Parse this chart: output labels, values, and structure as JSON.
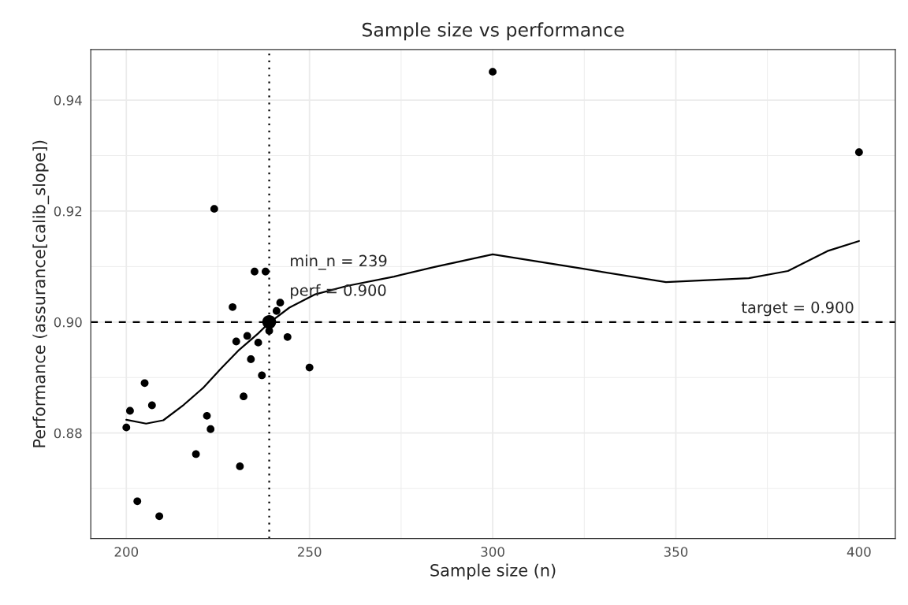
{
  "chart_data": {
    "type": "scatter",
    "title": "Sample size vs performance",
    "xlabel": "Sample size (n)",
    "ylabel": "Performance (assurance[calib_slope])",
    "xlim": [
      190.3,
      409.9
    ],
    "ylim": [
      0.861,
      0.9491
    ],
    "xticks": [
      200,
      {
        "value": 225,
        "label": null
      },
      250,
      {
        "value": 275,
        "label": null
      },
      300,
      {
        "value": 325,
        "label": null
      },
      350,
      {
        "value": 375,
        "label": null
      },
      400
    ],
    "yticks": [
      {
        "value": 0.87,
        "label": null
      },
      0.88,
      {
        "value": 0.89,
        "label": null
      },
      {
        "value": 0.9,
        "label": "0.90"
      },
      {
        "value": 0.91,
        "label": null
      },
      0.92,
      {
        "value": 0.93,
        "label": null
      },
      0.94
    ],
    "grid": true,
    "marker": "circle",
    "series": [
      {
        "color": "#000000",
        "x": [
          200,
          201,
          205,
          207,
          203,
          209,
          219,
          222,
          223,
          224,
          229,
          230,
          231,
          232,
          233,
          234,
          235,
          236,
          237,
          238,
          239,
          241,
          242,
          244,
          250,
          300,
          400
        ],
        "values": [
          0.881,
          0.884,
          0.889,
          0.885,
          0.8677,
          0.865,
          0.8762,
          0.8831,
          0.8807,
          0.9204,
          0.9027,
          0.8965,
          0.874,
          0.8866,
          0.8975,
          0.8933,
          0.9091,
          0.8963,
          0.8904,
          0.9091,
          0.8984,
          0.902,
          0.9035,
          0.8973,
          0.8918,
          0.9451,
          0.9306
        ]
      },
      {
        "color": "#000000",
        "x": [
          239
        ],
        "values": [
          0.9
        ]
      },
      {
        "type": "line",
        "color": "#000000",
        "marker": "none",
        "x": [
          200,
          205.4,
          210.1,
          215.7,
          220.9,
          225.8,
          230.8,
          235.9,
          238.7,
          244.5,
          251.6,
          260.2,
          273.1,
          283.9,
          300,
          324.7,
          347.3,
          369.9,
          380.6,
          391.4,
          400
        ],
        "values": [
          0.8824,
          0.8817,
          0.8823,
          0.8851,
          0.8881,
          0.8916,
          0.895,
          0.8979,
          0.8997,
          0.9026,
          0.905,
          0.9065,
          0.9082,
          0.9099,
          0.9122,
          0.9096,
          0.9072,
          0.9079,
          0.9092,
          0.9128,
          0.9146
        ]
      }
    ],
    "ref_lines": [
      {
        "axis": "y",
        "value": 0.9,
        "color": "#000000",
        "line_style": "dashed"
      },
      {
        "axis": "x",
        "value": 239,
        "color": "#000000",
        "line_style": "dotted"
      }
    ],
    "annotations": [
      "min_n = 239",
      "perf = 0.900",
      "target = 0.900"
    ]
  }
}
